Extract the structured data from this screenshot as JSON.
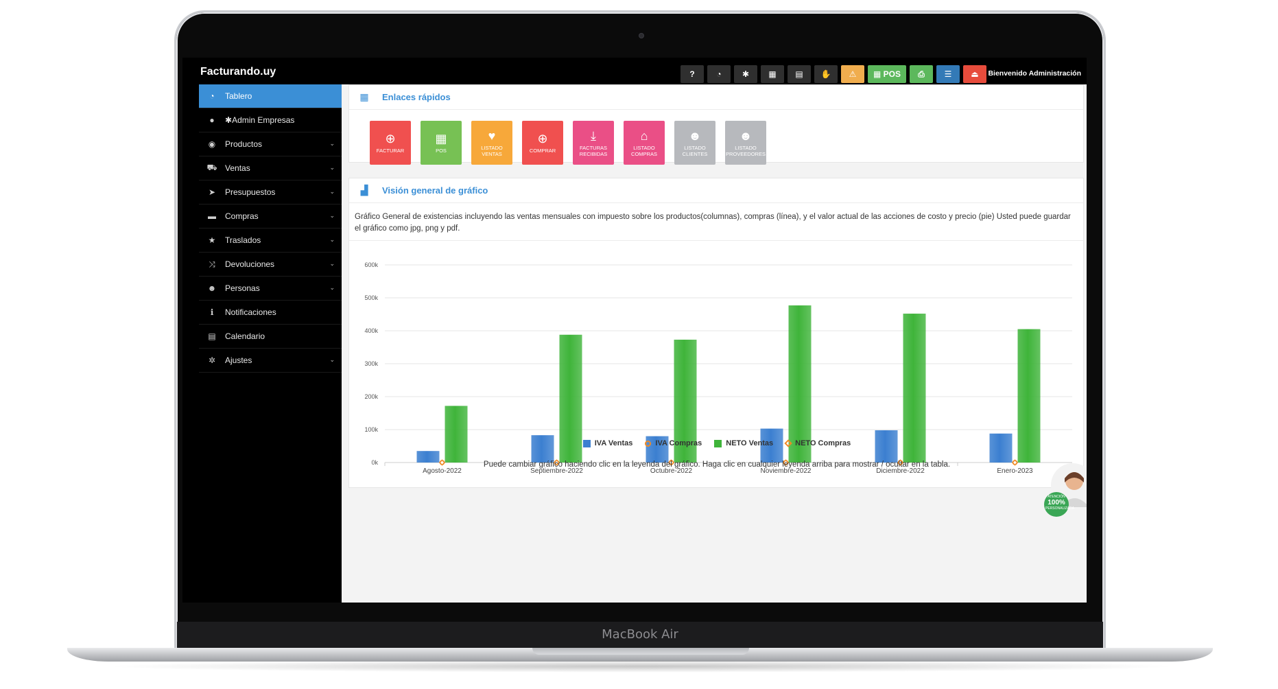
{
  "device": {
    "label": "MacBook Air"
  },
  "app": {
    "brand": "Facturando.uy",
    "welcome": "Bienvenido Administración"
  },
  "topbar": {
    "buttons": [
      {
        "icon": "help-icon",
        "glyph": "?",
        "style": "dark"
      },
      {
        "icon": "dashboard-icon",
        "glyph": "◔",
        "style": "dark"
      },
      {
        "icon": "gears-icon",
        "glyph": "✱",
        "style": "dark"
      },
      {
        "icon": "calculator-icon",
        "glyph": "▦",
        "style": "dark"
      },
      {
        "icon": "calendar-icon",
        "glyph": "▤",
        "style": "dark"
      },
      {
        "icon": "hand-icon",
        "glyph": "✋",
        "style": "dark"
      },
      {
        "icon": "warning-icon",
        "glyph": "⚠",
        "style": "yellow"
      },
      {
        "icon": "pos-icon",
        "glyph": "▦ POS",
        "style": "green"
      },
      {
        "icon": "printer-icon",
        "glyph": "⎙",
        "style": "green"
      },
      {
        "icon": "list-icon",
        "glyph": "☰",
        "style": "blue"
      },
      {
        "icon": "signout-icon",
        "glyph": "⏏",
        "style": "red"
      }
    ]
  },
  "sidebar": {
    "items": [
      {
        "label": "Tablero",
        "icon": "dashboard-icon",
        "glyph": "◔",
        "active": true,
        "chevron": false
      },
      {
        "label": "Admin Empresas",
        "icon": "user-icon",
        "glyph": "●",
        "active": false,
        "chevron": false,
        "prefix": "✱ "
      },
      {
        "label": "Productos",
        "icon": "product-icon",
        "glyph": "◉",
        "active": false,
        "chevron": true
      },
      {
        "label": "Ventas",
        "icon": "cart-icon",
        "glyph": "⛟",
        "active": false,
        "chevron": true
      },
      {
        "label": "Presupuestos",
        "icon": "send-icon",
        "glyph": "➤",
        "active": false,
        "chevron": true
      },
      {
        "label": "Compras",
        "icon": "card-icon",
        "glyph": "▬",
        "active": false,
        "chevron": true
      },
      {
        "label": "Traslados",
        "icon": "star-icon",
        "glyph": "★",
        "active": false,
        "chevron": true
      },
      {
        "label": "Devoluciones",
        "icon": "shuffle-icon",
        "glyph": "⤨",
        "active": false,
        "chevron": true
      },
      {
        "label": "Personas",
        "icon": "users-icon",
        "glyph": "☻",
        "active": false,
        "chevron": true
      },
      {
        "label": "Notificaciones",
        "icon": "info-icon",
        "glyph": "ℹ",
        "active": false,
        "chevron": false
      },
      {
        "label": "Calendario",
        "icon": "calendar-icon",
        "glyph": "▤",
        "active": false,
        "chevron": false
      },
      {
        "label": "Ajustes",
        "icon": "cog-icon",
        "glyph": "✲",
        "active": false,
        "chevron": true
      }
    ]
  },
  "quick_links": {
    "title": "Enlaces rápidos",
    "tiles": [
      {
        "label": "FACTURAR",
        "icon": "plus-circle-icon",
        "glyph": "⊕",
        "color": "#f0504f"
      },
      {
        "label": "POS",
        "icon": "grid-icon",
        "glyph": "▦",
        "color": "#77c154"
      },
      {
        "label": "LISTADO VENTAS",
        "icon": "heart-icon",
        "glyph": "♥",
        "color": "#f7a83a"
      },
      {
        "label": "COMPRAR",
        "icon": "plus-circle-icon",
        "glyph": "⊕",
        "color": "#f0504f"
      },
      {
        "label": "FACTURAS RECIBIDAS",
        "icon": "download-icon",
        "glyph": "⤓",
        "color": "#ea4f86"
      },
      {
        "label": "LISTADO COMPRAS",
        "icon": "store-icon",
        "glyph": "⌂",
        "color": "#ea4f86"
      },
      {
        "label": "LISTADO CLIENTES",
        "icon": "users-icon",
        "glyph": "☻",
        "color": "#b7b9bd"
      },
      {
        "label": "LISTADO PROVEEDORES",
        "icon": "users-icon",
        "glyph": "☻",
        "color": "#b7b9bd"
      }
    ]
  },
  "chart_panel": {
    "title": "Visión general de gráfico",
    "description": "Gráfico General de existencias incluyendo las ventas mensuales con impuesto sobre los productos(columnas), compras (línea), y el valor actual de las acciones de costo y precio (pie) Usted puede guardar el gráfico como jpg, png y pdf.",
    "note": "Puede cambiar gráfico haciendo clic en la leyenda del gráfico. Haga clic en cualquier leyenda arriba para mostrar / ocultar en la tabla."
  },
  "support_badge": {
    "line1": "ATENCIÓN",
    "line2": "100%",
    "line3": "PERSONALIZADA"
  },
  "chart_data": {
    "type": "bar",
    "categories": [
      "Agosto-2022",
      "Septiembre-2022",
      "Octubre-2022",
      "Noviembre-2022",
      "Diciembre-2022",
      "Enero-2023"
    ],
    "ylim": [
      0,
      600000
    ],
    "yticks": [
      "0k",
      "100k",
      "200k",
      "300k",
      "400k",
      "500k",
      "600k"
    ],
    "grid": true,
    "legend": "bottom-center",
    "series": [
      {
        "name": "IVA Ventas",
        "kind": "bar",
        "color": "#3b7fd0",
        "values": [
          35000,
          83000,
          80000,
          103000,
          98000,
          88000
        ]
      },
      {
        "name": "IVA Compras",
        "kind": "line-circle",
        "color": "#f08a24",
        "values": [
          0,
          0,
          0,
          0,
          0,
          0
        ]
      },
      {
        "name": "NETO Ventas",
        "kind": "bar",
        "color": "#3fb43a",
        "values": [
          172000,
          388000,
          373000,
          477000,
          452000,
          405000
        ]
      },
      {
        "name": "NETO Compras",
        "kind": "line-diamond",
        "color": "#f08a24",
        "values": [
          0,
          0,
          0,
          0,
          0,
          0
        ]
      }
    ]
  }
}
